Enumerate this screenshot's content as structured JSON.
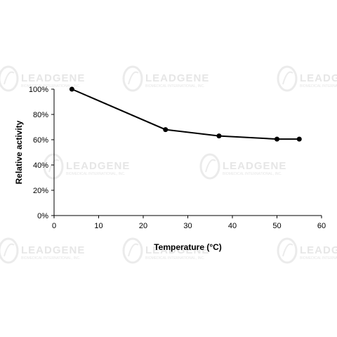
{
  "watermark": {
    "brand": "LEADGENE",
    "subtitle": "BIOMEDICAL INTERNATIONAL, INC."
  },
  "chart_data": {
    "type": "line",
    "title": "",
    "xlabel": "Temperature (°C)",
    "ylabel": "Relative activity",
    "xlim": [
      0,
      60
    ],
    "ylim": [
      0,
      100
    ],
    "x_ticks": [
      0,
      10,
      20,
      30,
      40,
      50,
      60
    ],
    "y_ticks": [
      0,
      20,
      40,
      60,
      80,
      100
    ],
    "y_tick_suffix": "%",
    "grid": false,
    "legend": "none",
    "series": [
      {
        "color": "#000000",
        "x": [
          4,
          25,
          37,
          50,
          55
        ],
        "y": [
          100,
          68,
          63,
          60.5,
          60.5
        ]
      }
    ]
  }
}
